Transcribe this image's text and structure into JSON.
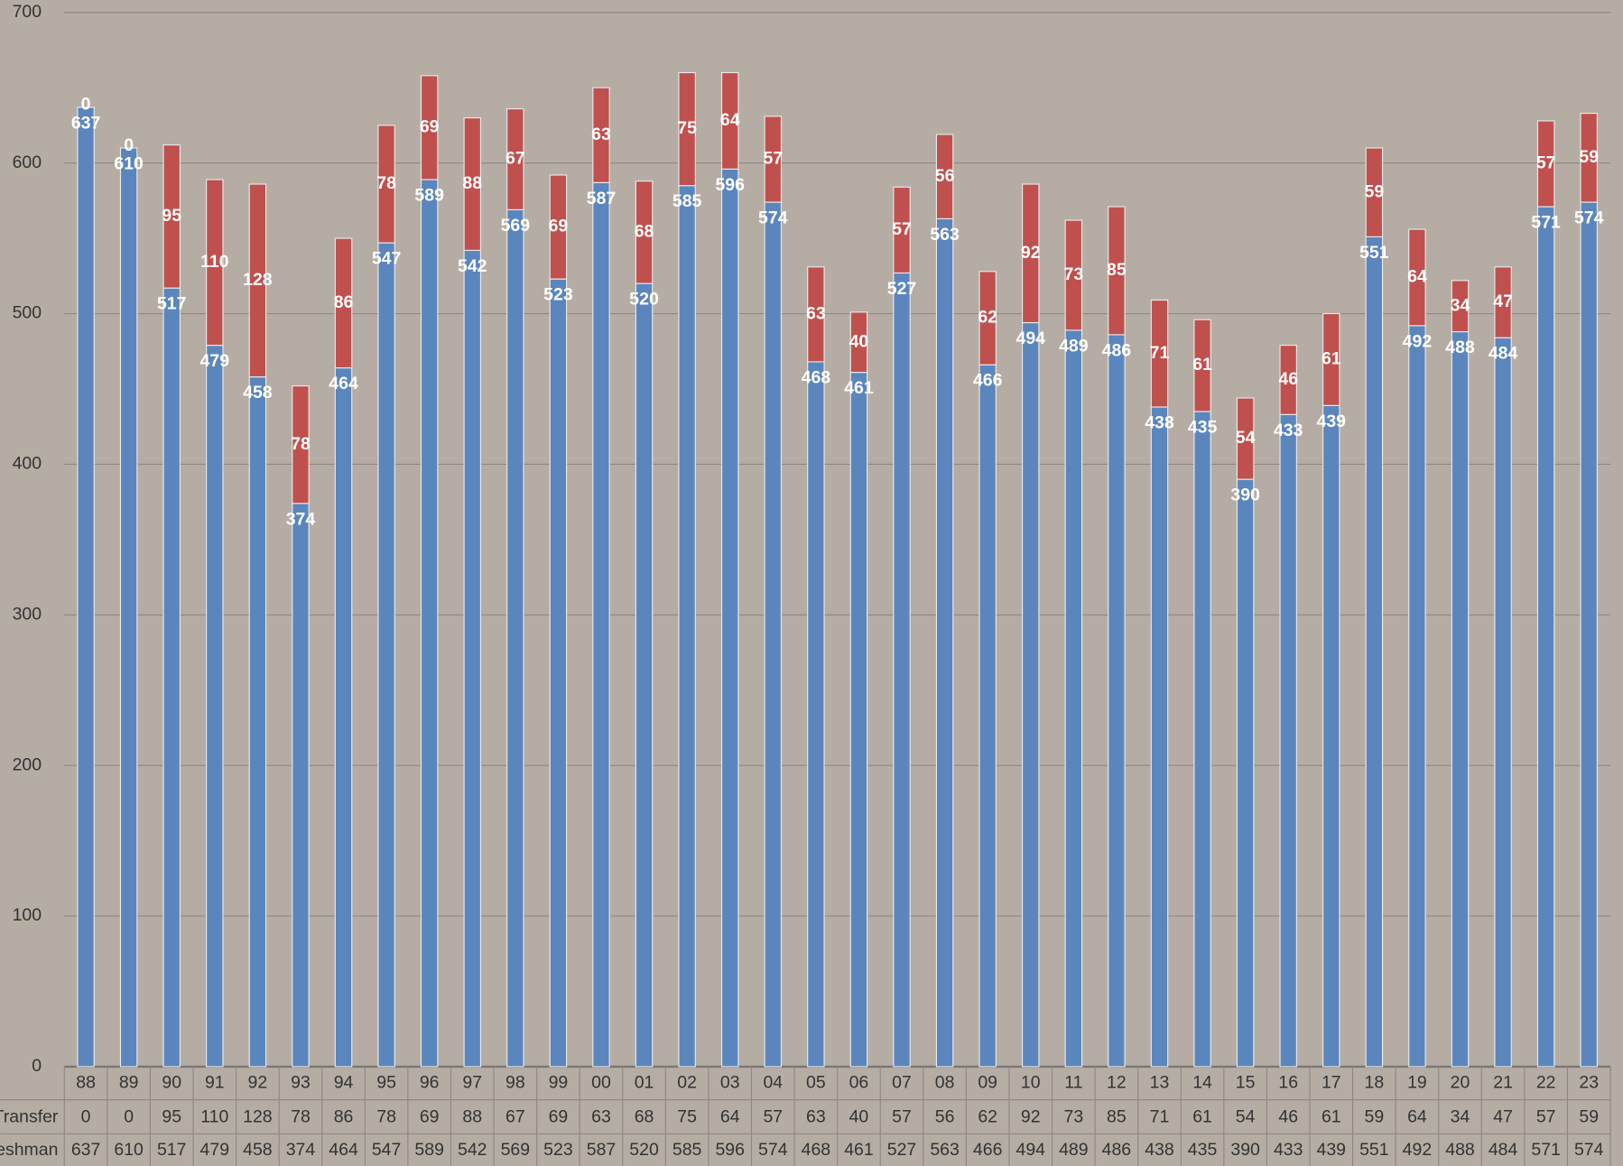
{
  "chart_data": {
    "type": "bar",
    "stacked": true,
    "categories": [
      "88",
      "89",
      "90",
      "91",
      "92",
      "93",
      "94",
      "95",
      "96",
      "97",
      "98",
      "99",
      "00",
      "01",
      "02",
      "03",
      "04",
      "05",
      "06",
      "07",
      "08",
      "09",
      "10",
      "11",
      "12",
      "13",
      "14",
      "15",
      "16",
      "17",
      "18",
      "19",
      "20",
      "21",
      "22",
      "23"
    ],
    "series": [
      {
        "name": "Freshman",
        "color": "#5b86bd",
        "values": [
          637,
          610,
          517,
          479,
          458,
          374,
          464,
          547,
          589,
          542,
          569,
          523,
          587,
          520,
          585,
          596,
          574,
          468,
          461,
          527,
          563,
          466,
          494,
          489,
          486,
          438,
          435,
          390,
          433,
          439,
          551,
          492,
          488,
          484,
          571,
          574
        ]
      },
      {
        "name": "Transfer",
        "color": "#c0504d",
        "values": [
          0,
          0,
          95,
          110,
          128,
          78,
          86,
          78,
          69,
          88,
          67,
          69,
          63,
          68,
          75,
          64,
          57,
          63,
          40,
          57,
          56,
          62,
          92,
          73,
          85,
          71,
          61,
          54,
          46,
          61,
          59,
          64,
          34,
          47,
          57,
          59
        ]
      }
    ],
    "ylim": [
      0,
      700
    ],
    "yticks": [
      0,
      100,
      200,
      300,
      400,
      500,
      600,
      700
    ],
    "grid": true,
    "data_table": true
  }
}
